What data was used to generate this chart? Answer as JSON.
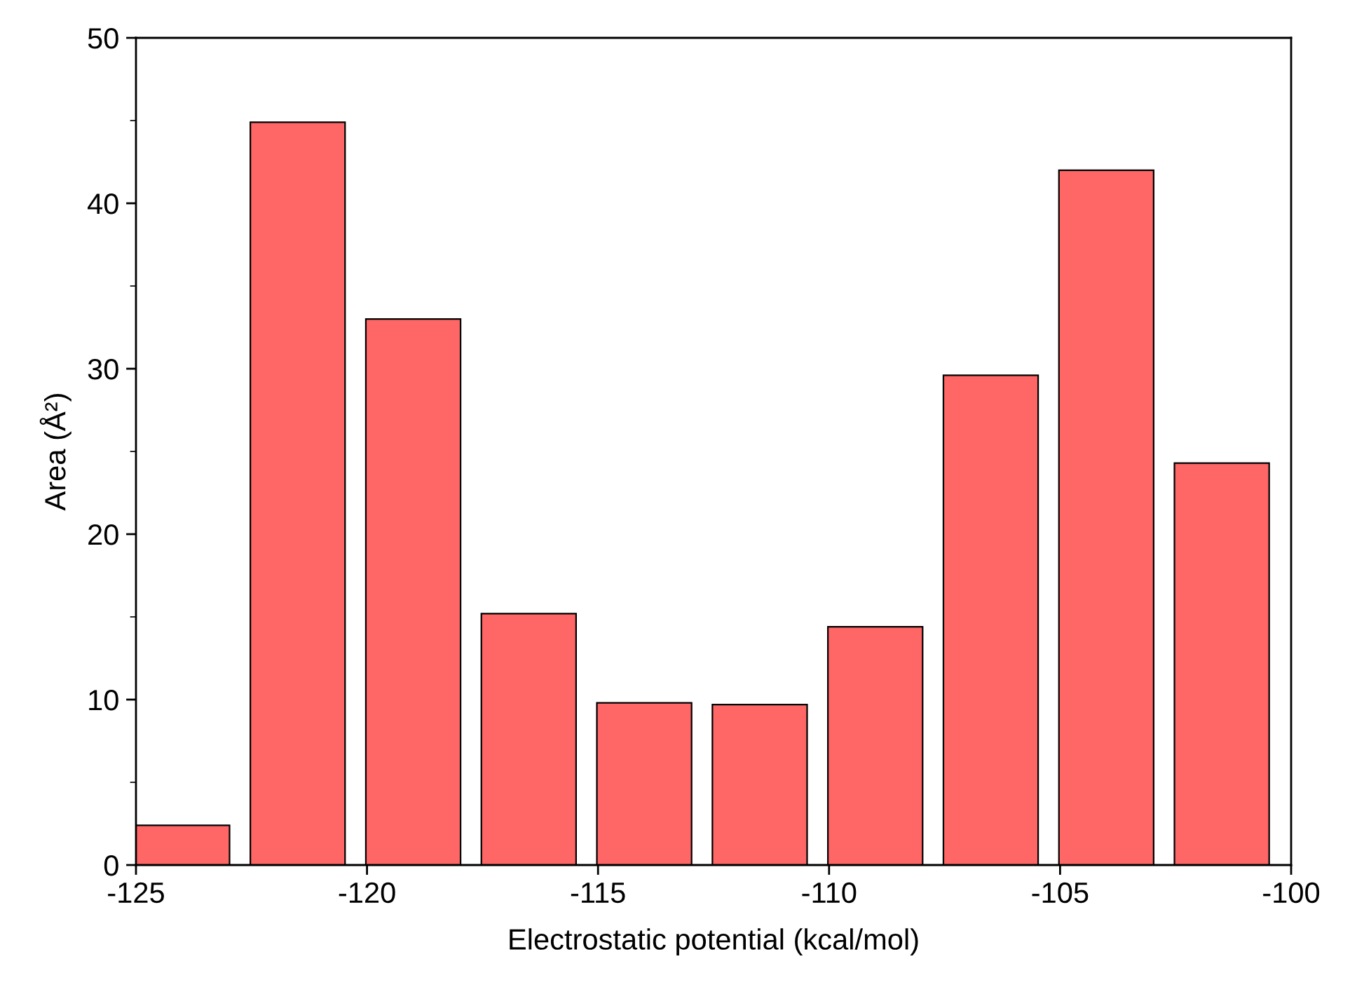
{
  "chart_data": {
    "type": "bar",
    "xlabel": "Electrostatic potential (kcal/mol)",
    "ylabel": "Area (Å²)",
    "x": [
      -124,
      -121.5,
      -119,
      -116.5,
      -114,
      -111.5,
      -109,
      -106.5,
      -104,
      -101.5
    ],
    "values": [
      2.4,
      44.9,
      33.0,
      15.2,
      9.8,
      9.7,
      14.4,
      29.6,
      42.0,
      24.3
    ],
    "color": "#ff6666",
    "xlim": [
      -125,
      -100
    ],
    "xticks": [
      -125,
      -120,
      -115,
      -110,
      -105,
      -100
    ],
    "ylim": [
      0,
      50
    ],
    "yticks": [
      0,
      10,
      20,
      30,
      40,
      50
    ],
    "grid": false
  }
}
